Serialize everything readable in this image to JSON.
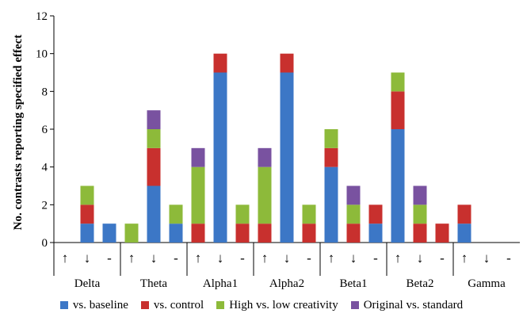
{
  "chart_data": {
    "type": "bar",
    "stacked": true,
    "ylabel": "No. contrasts reporting specified effect",
    "ylim": [
      0,
      12
    ],
    "yticks": [
      0,
      2,
      4,
      6,
      8,
      10,
      12
    ],
    "grid": false,
    "legend_position": "bottom",
    "groups": [
      "Delta",
      "Theta",
      "Alpha1",
      "Alpha2",
      "Beta1",
      "Beta2",
      "Gamma"
    ],
    "directions": [
      "↑",
      "↓",
      "-"
    ],
    "series": [
      {
        "name": "vs. baseline",
        "color": "#3C77C6",
        "values": [
          0,
          1,
          1,
          0,
          3,
          1,
          0,
          9,
          0,
          0,
          9,
          0,
          4,
          0,
          1,
          6,
          0,
          0,
          1,
          0,
          0
        ]
      },
      {
        "name": "vs. control",
        "color": "#C8302E",
        "values": [
          0,
          1,
          0,
          0,
          2,
          0,
          1,
          1,
          1,
          1,
          1,
          1,
          1,
          1,
          1,
          2,
          1,
          1,
          1,
          0,
          0
        ]
      },
      {
        "name": "High vs. low creativity",
        "color": "#8DBA3A",
        "values": [
          0,
          1,
          0,
          1,
          1,
          1,
          3,
          0,
          1,
          3,
          0,
          1,
          1,
          1,
          0,
          1,
          1,
          0,
          0,
          0,
          0
        ]
      },
      {
        "name": "Original vs. standard",
        "color": "#7952A0",
        "values": [
          0,
          0,
          0,
          0,
          1,
          0,
          1,
          0,
          0,
          1,
          0,
          0,
          0,
          1,
          0,
          0,
          1,
          0,
          0,
          0,
          0
        ]
      }
    ]
  }
}
